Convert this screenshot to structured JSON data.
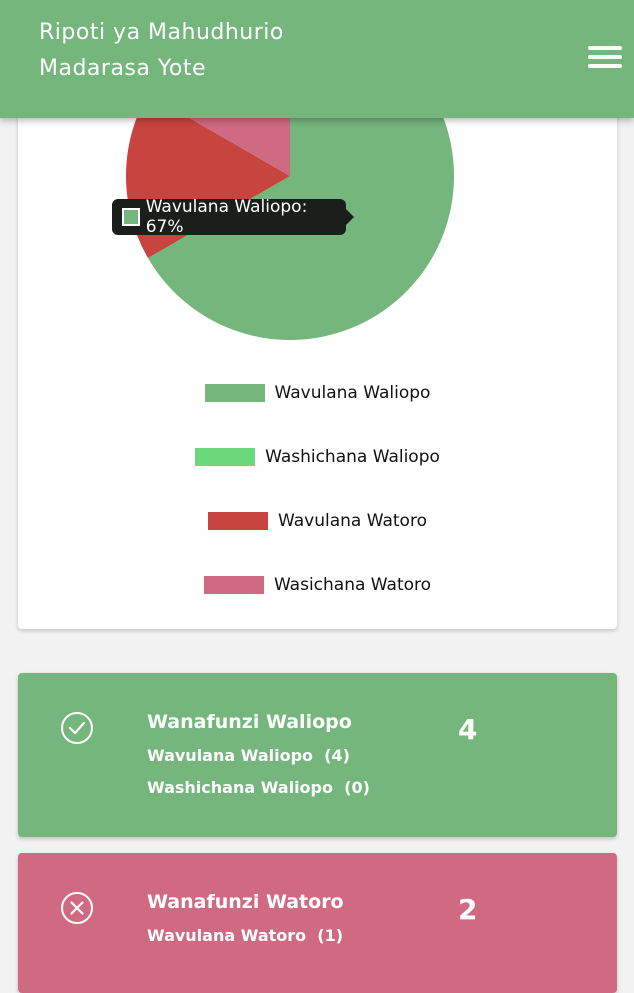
{
  "header": {
    "title": "Ripoti ya Mahudhurio",
    "subtitle": "Madarasa Yote"
  },
  "colors": {
    "header": "#74b67c",
    "boys_present": "#74b67c",
    "girls_present": "#6bd97b",
    "boys_absent": "#c8443f",
    "girls_absent": "#d06a82"
  },
  "chart_data": {
    "type": "pie",
    "categories": [
      "Wavulana Waliopo",
      "Washichana Waliopo",
      "Wavulana Watoro",
      "Wasichana Watoro"
    ],
    "values": [
      4,
      0,
      1,
      1
    ],
    "colors": [
      "#74b67c",
      "#6bd97b",
      "#c8443f",
      "#d06a82"
    ],
    "tooltip": "Wavulana Waliopo: 67%",
    "legend_placement": "bottom"
  },
  "cards": {
    "present": {
      "title": "Wanafunzi Waliopo",
      "count": "4",
      "line1": "Wavulana Waliopo  (4)",
      "line2": "Washichana Waliopo  (0)"
    },
    "absent": {
      "title": "Wanafunzi Watoro",
      "count": "2",
      "line1": "Wavulana Watoro  (1)"
    }
  }
}
